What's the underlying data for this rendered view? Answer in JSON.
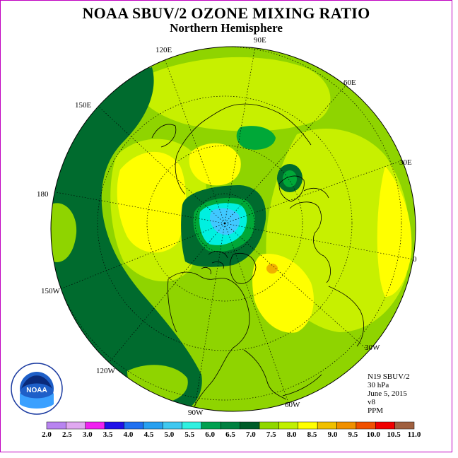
{
  "header": {
    "title": "NOAA SBUV/2 OZONE MIXING RATIO",
    "subtitle": "Northern Hemisphere"
  },
  "map": {
    "longitude_labels": [
      "90E",
      "60E",
      "30E",
      "0",
      "30W",
      "60W",
      "90W",
      "120W",
      "150W",
      "180",
      "150E",
      "120E"
    ],
    "colors": {
      "ocean_green": "#8fd400",
      "yellow_green": "#c7f000",
      "yellow": "#ffff00",
      "dark_green": "#006b2e",
      "green": "#00a838",
      "cyan": "#00f0e0",
      "light_blue": "#40c8ff",
      "orange": "#f0b000"
    }
  },
  "info": {
    "satellite": "N19 SBUV/2",
    "level": "30 hPa",
    "date": "June 5, 2015",
    "version": "v8",
    "units": "PPM"
  },
  "legend": {
    "ticks": [
      "2.0",
      "2.5",
      "3.0",
      "3.5",
      "4.0",
      "4.5",
      "5.0",
      "5.5",
      "6.0",
      "6.5",
      "7.0",
      "7.5",
      "8.0",
      "8.5",
      "9.0",
      "9.5",
      "10.0",
      "10.5",
      "11.0"
    ],
    "colors": [
      "#b884f0",
      "#e0a8f0",
      "#f020f0",
      "#2010e8",
      "#2070f0",
      "#28a0f0",
      "#40c8f0",
      "#30f0e0",
      "#00a050",
      "#008040",
      "#005c28",
      "#90d800",
      "#c0f000",
      "#ffff00",
      "#f0c000",
      "#f09000",
      "#f05000",
      "#f00000",
      "#a06040"
    ]
  },
  "logo": {
    "text": "NOAA",
    "ring_text": "NATIONAL OCEANIC AND ATMOSPHERIC ADMINISTRATION · U.S. DEPARTMENT OF COMMERCE"
  }
}
